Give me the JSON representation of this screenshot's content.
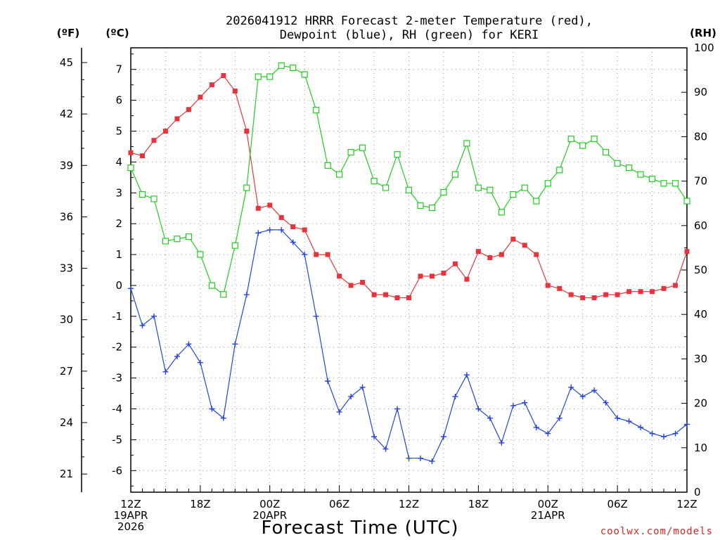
{
  "chart_data": {
    "type": "line",
    "title_line1": "2026041912 HRRR Forecast 2-meter Temperature (red),",
    "title_line2": "Dewpoint (blue), RH (green) for KERI",
    "xlabel": "Forecast Time (UTC)",
    "credit": "coolwx.com/models",
    "unit_labels": {
      "fahrenheit": "(ºF)",
      "celsius": "(ºC)",
      "rh": "(RH)"
    },
    "x_range_hours": [
      0,
      48
    ],
    "celsius_range": [
      -6.7,
      7.7
    ],
    "rh_range": [
      0,
      100
    ],
    "grid": true,
    "colors": {
      "temperature": "#e8333c",
      "dewpoint": "#2244dd",
      "rh": "#22cc22",
      "credit": "#dd2222"
    },
    "x_ticks": [
      {
        "hour": 0,
        "lines": [
          "12Z",
          "19APR",
          "2026"
        ]
      },
      {
        "hour": 6,
        "lines": [
          "18Z"
        ]
      },
      {
        "hour": 12,
        "lines": [
          "00Z",
          "20APR"
        ]
      },
      {
        "hour": 18,
        "lines": [
          "06Z"
        ]
      },
      {
        "hour": 24,
        "lines": [
          "12Z"
        ]
      },
      {
        "hour": 30,
        "lines": [
          "18Z"
        ]
      },
      {
        "hour": 36,
        "lines": [
          "00Z",
          "21APR"
        ]
      },
      {
        "hour": 42,
        "lines": [
          "06Z"
        ]
      },
      {
        "hour": 48,
        "lines": [
          "12Z"
        ]
      }
    ],
    "celsius_ticks": [
      "7",
      "6",
      "5",
      "4",
      "3",
      "2",
      "1",
      "0",
      "-1",
      "-2",
      "-3",
      "-4",
      "-5",
      "-6"
    ],
    "fahrenheit_ticks": [
      "45",
      "42",
      "39",
      "36",
      "33",
      "30",
      "27",
      "24",
      "21"
    ],
    "rh_ticks": [
      "100",
      "90",
      "80",
      "70",
      "60",
      "50",
      "40",
      "30",
      "20",
      "10",
      "0"
    ],
    "series": [
      {
        "name": "Temperature",
        "unit": "C",
        "marker": "filled-square",
        "values": [
          4.3,
          4.2,
          4.7,
          5.0,
          5.4,
          5.7,
          6.1,
          6.5,
          6.8,
          6.3,
          5.0,
          2.5,
          2.6,
          2.2,
          1.9,
          1.8,
          1.0,
          1.0,
          0.3,
          0.0,
          0.1,
          -0.3,
          -0.3,
          -0.4,
          -0.4,
          0.3,
          0.3,
          0.4,
          0.7,
          0.2,
          1.1,
          0.9,
          1.0,
          1.5,
          1.3,
          1.0,
          0.0,
          -0.1,
          -0.3,
          -0.4,
          -0.4,
          -0.3,
          -0.3,
          -0.2,
          -0.2,
          -0.2,
          -0.1,
          0.0,
          1.1
        ]
      },
      {
        "name": "Dewpoint",
        "unit": "C",
        "marker": "plus",
        "values": [
          -0.1,
          -1.3,
          -1.0,
          -2.8,
          -2.3,
          -1.9,
          -2.5,
          -4.0,
          -4.3,
          -1.9,
          -0.3,
          1.7,
          1.8,
          1.8,
          1.4,
          1.0,
          -1.0,
          -3.1,
          -4.1,
          -3.6,
          -3.3,
          -4.9,
          -5.3,
          -4.0,
          -5.6,
          -5.6,
          -5.7,
          -4.9,
          -3.6,
          -2.9,
          -4.0,
          -4.3,
          -5.1,
          -3.9,
          -3.8,
          -4.6,
          -4.8,
          -4.3,
          -3.3,
          -3.6,
          -3.4,
          -3.8,
          -4.3,
          -4.4,
          -4.6,
          -4.8,
          -4.9,
          -4.8,
          -4.5
        ]
      },
      {
        "name": "RH",
        "unit": "%",
        "marker": "open-square",
        "values": [
          73.0,
          67.0,
          66.0,
          56.5,
          57.0,
          57.5,
          53.5,
          46.5,
          44.5,
          55.5,
          68.5,
          93.5,
          93.5,
          96.0,
          95.5,
          94.0,
          86.0,
          73.5,
          71.5,
          76.5,
          77.5,
          70.0,
          68.5,
          76.0,
          68.0,
          64.5,
          64.0,
          67.5,
          71.5,
          78.5,
          68.5,
          68.0,
          63.0,
          67.0,
          68.5,
          65.5,
          69.5,
          72.5,
          79.5,
          78.0,
          79.5,
          76.5,
          74.0,
          73.0,
          71.5,
          70.5,
          69.5,
          69.5,
          65.5
        ]
      }
    ]
  }
}
